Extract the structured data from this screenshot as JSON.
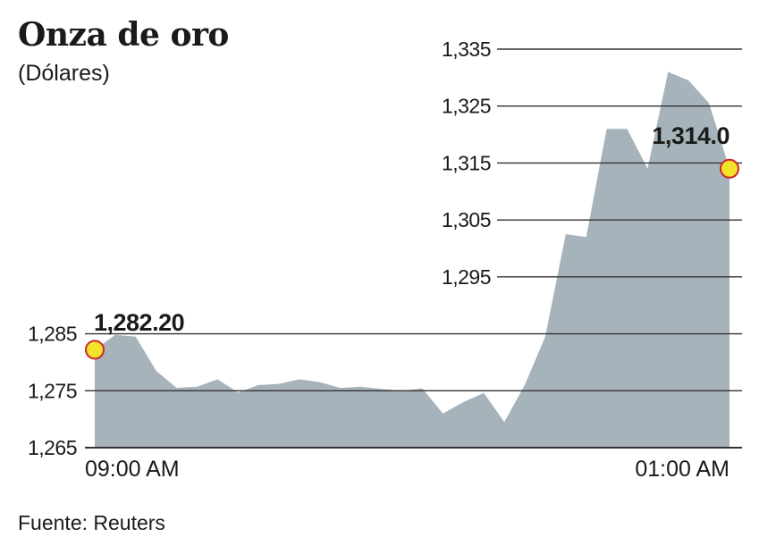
{
  "header": {
    "title": "Onza de oro",
    "subtitle": "(Dólares)"
  },
  "footer": {
    "source": "Fuente: Reuters"
  },
  "colors": {
    "area": "#a7b3bb",
    "gridline": "#333333",
    "marker_fill": "#f3e32a",
    "marker_stroke": "#d0242c"
  },
  "chart_data": {
    "type": "area",
    "title": "Onza de oro",
    "subtitle": "(Dólares)",
    "ylim": [
      1265,
      1335
    ],
    "yticks": [
      1335,
      1325,
      1315,
      1305,
      1295,
      1285,
      1275,
      1265
    ],
    "ytick_labels": [
      "1,335",
      "1,325",
      "1,315",
      "1,305",
      "1,295",
      "1,285",
      "1,275",
      "1,265"
    ],
    "xtick_labels": [
      "09:00 AM",
      "01:00 AM"
    ],
    "grid": true,
    "series": [
      {
        "values": [
          1282.2,
          1284.8,
          1284.5,
          1278.5,
          1275.5,
          1275.7,
          1277,
          1274.7,
          1276,
          1276.2,
          1277,
          1276.5,
          1275.5,
          1275.7,
          1275.3,
          1275,
          1275.4,
          1271,
          1273,
          1274.6,
          1269.5,
          1276,
          1284.5,
          1302.5,
          1302,
          1321,
          1321,
          1314,
          1331,
          1329.5,
          1325.5,
          1314
        ]
      }
    ],
    "annotations": {
      "start": {
        "label": "1,282.20",
        "value": 1282.2
      },
      "end": {
        "label": "1,314.0",
        "value": 1314.0
      }
    }
  }
}
